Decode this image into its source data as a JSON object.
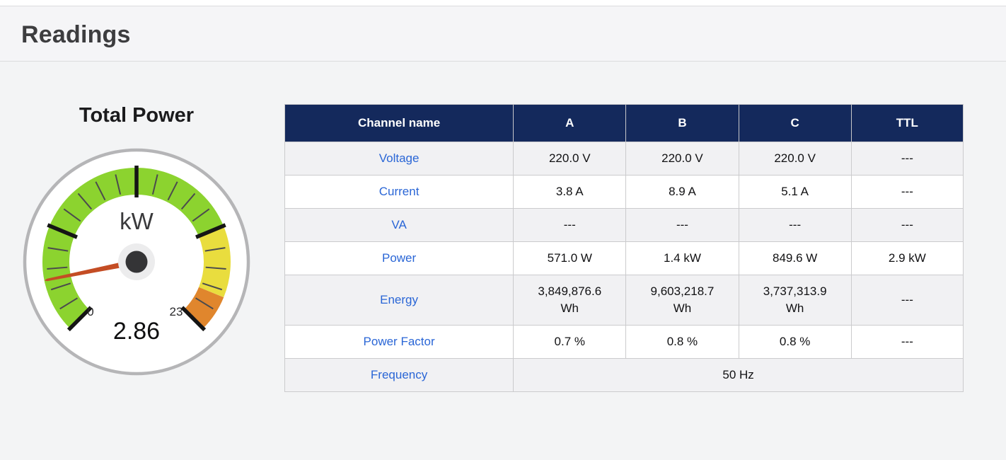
{
  "page": {
    "title": "Readings"
  },
  "gauge": {
    "title": "Total Power",
    "unit": "kW",
    "value": 2.86,
    "value_label": "2.86",
    "min": 0,
    "max": 23,
    "min_label": "0",
    "max_label": "23",
    "tick_divisions": 20,
    "major_tick_every": 5,
    "zones": [
      {
        "from": 0,
        "to": 17.25,
        "color": "#8cd32f"
      },
      {
        "from": 17.25,
        "to": 21.05,
        "color": "#e9dd3e"
      },
      {
        "from": 21.05,
        "to": 23,
        "color": "#e0862d"
      }
    ],
    "colors": {
      "face": "#ffffff",
      "rim": "#b5b5b7",
      "needle": "#c44d24",
      "hub": "#343436",
      "hub_halo": "#ececed",
      "minor_tick": "#4b4b4d",
      "major_tick": "#151515",
      "unit_text": "#3a3a3c",
      "value_text": "#0f0f10",
      "range_text": "#29292b"
    }
  },
  "table": {
    "headers": [
      "Channel name",
      "A",
      "B",
      "C",
      "TTL"
    ],
    "rows": [
      {
        "label": "Voltage",
        "cells": [
          "220.0 V",
          "220.0 V",
          "220.0 V",
          "---"
        ]
      },
      {
        "label": "Current",
        "cells": [
          "3.8 A",
          "8.9 A",
          "5.1 A",
          "---"
        ]
      },
      {
        "label": "VA",
        "cells": [
          "---",
          "---",
          "---",
          "---"
        ]
      },
      {
        "label": "Power",
        "cells": [
          "571.0 W",
          "1.4 kW",
          "849.6 W",
          "2.9 kW"
        ]
      },
      {
        "label": "Energy",
        "cells": [
          "3,849,876.6\nWh",
          "9,603,218.7\nWh",
          "3,737,313.9\nWh",
          "---"
        ]
      },
      {
        "label": "Power Factor",
        "cells": [
          "0.7 %",
          "0.8 %",
          "0.8 %",
          "---"
        ]
      },
      {
        "label": "Frequency",
        "cells": [
          "50 Hz"
        ],
        "colspan": 4
      }
    ],
    "header_bg": "#14295c",
    "link_color": "#2a66d6"
  }
}
